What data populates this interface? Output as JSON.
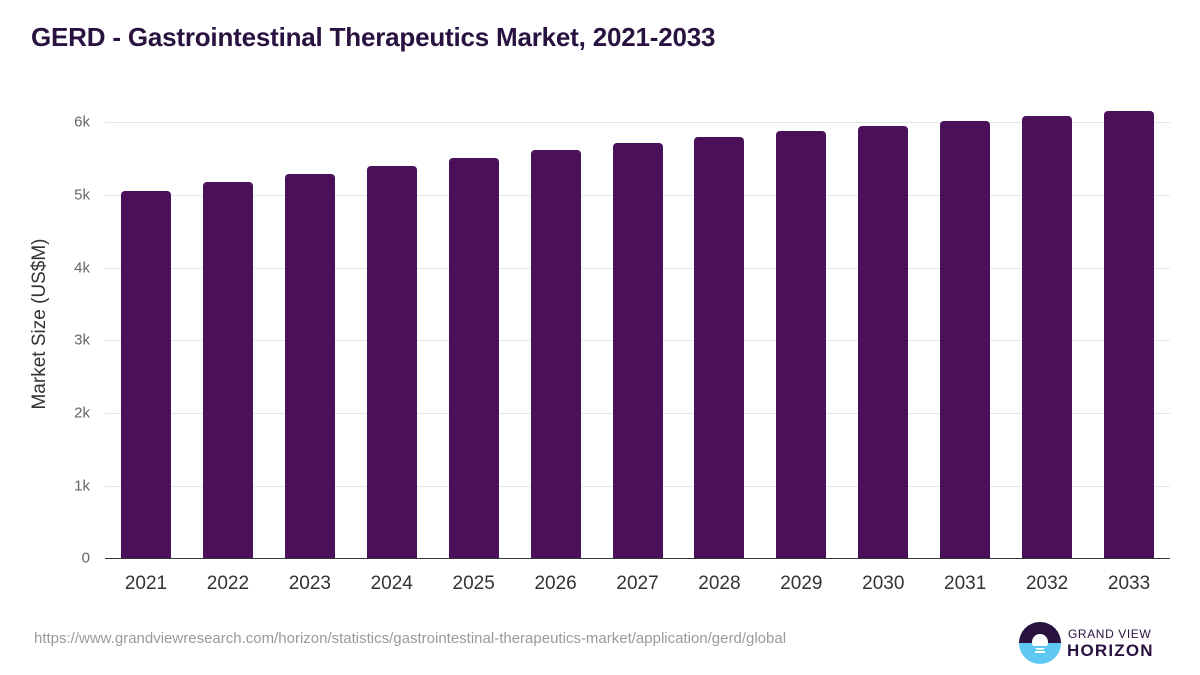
{
  "title": "GERD - Gastrointestinal Therapeutics Market, 2021-2033",
  "source_url": "https://www.grandviewresearch.com/horizon/statistics/gastrointestinal-therapeutics-market/application/gerd/global",
  "logo": {
    "line1": "GRAND VIEW",
    "line2": "HORIZON"
  },
  "colors": {
    "bar": "#4a1059",
    "title": "#2a1240",
    "logo_light": "#5ec7f2"
  },
  "chart_data": {
    "type": "bar",
    "title": "GERD - Gastrointestinal Therapeutics Market, 2021-2033",
    "xlabel": "",
    "ylabel": "Market Size (US$M)",
    "categories": [
      "2021",
      "2022",
      "2023",
      "2024",
      "2025",
      "2026",
      "2027",
      "2028",
      "2029",
      "2030",
      "2031",
      "2032",
      "2033"
    ],
    "values": [
      5058,
      5180,
      5290,
      5400,
      5510,
      5620,
      5710,
      5800,
      5880,
      5950,
      6020,
      6090,
      6150
    ],
    "ylim": [
      0,
      6000
    ],
    "yticks": [
      "0",
      "1k",
      "2k",
      "3k",
      "4k",
      "5k",
      "6k"
    ],
    "grid": true,
    "legend": null
  }
}
